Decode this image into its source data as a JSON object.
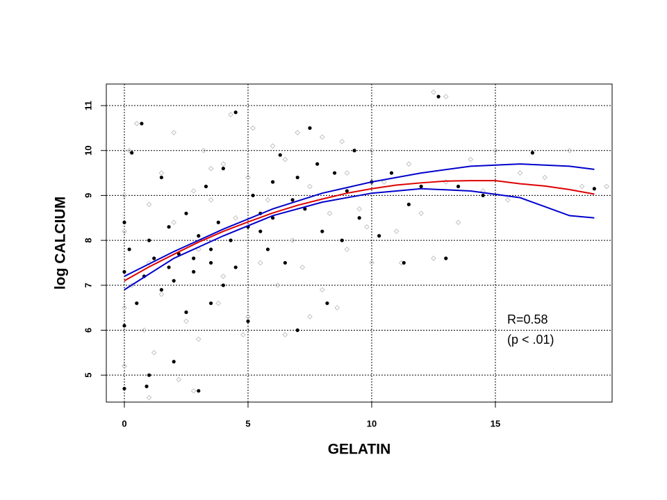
{
  "chart_data": {
    "type": "scatter",
    "xlabel": "GELATIN",
    "ylabel": "log CALCIUM",
    "annotations": [
      "R=0.58",
      "(p < .01)"
    ],
    "xlim": [
      -0.73,
      19.72
    ],
    "ylim": [
      4.4,
      11.48
    ],
    "xticks": [
      0,
      5,
      10,
      15
    ],
    "yticks": [
      5,
      6,
      7,
      8,
      9,
      10,
      11
    ],
    "grid": true,
    "series": [
      {
        "color": "#bbbbbb",
        "marker": "diamond",
        "x": [
          0,
          0,
          0,
          0,
          0.2,
          0.5,
          0.8,
          1,
          1,
          1.2,
          1.5,
          1.5,
          2,
          2,
          2.2,
          2.5,
          2.8,
          3,
          3,
          3.2,
          3.5,
          3.8,
          4,
          4,
          4.3,
          4.5,
          5,
          5,
          5.2,
          5.5,
          5.8,
          6,
          6.2,
          6.5,
          6.8,
          7,
          7.2,
          7.5,
          8,
          8,
          8.3,
          8.6,
          9,
          9,
          9.5,
          10,
          10,
          10.5,
          11,
          11.2,
          11.5,
          12,
          12.5,
          12.5,
          13,
          13,
          13.5,
          14,
          14.5,
          15,
          15.5,
          16,
          17,
          18,
          18.5,
          19.5,
          1,
          2.8,
          0.3,
          4.8,
          7.5,
          6.5,
          3.5,
          8.8,
          9.8
        ],
        "values": [
          9.0,
          8.2,
          6.5,
          5.2,
          10.0,
          10.6,
          6.0,
          8.8,
          7.5,
          5.5,
          9.5,
          6.8,
          8.4,
          10.4,
          4.9,
          6.2,
          9.1,
          7.8,
          5.8,
          10.0,
          8.9,
          6.6,
          9.7,
          7.2,
          10.8,
          8.5,
          6.3,
          9.4,
          10.5,
          7.5,
          8.9,
          10.1,
          7.0,
          9.8,
          8.0,
          10.4,
          7.4,
          9.2,
          6.9,
          10.3,
          8.6,
          6.5,
          9.5,
          7.8,
          8.7,
          10.0,
          7.5,
          9.3,
          8.2,
          7.5,
          9.7,
          8.6,
          7.6,
          11.3,
          9.3,
          11.2,
          8.4,
          9.8,
          9.1,
          10.0,
          8.9,
          9.5,
          9.4,
          10.0,
          9.2,
          9.2,
          4.5,
          4.65,
          7.0,
          5.9,
          6.3,
          5.9,
          9.6,
          10.2,
          8.3
        ]
      },
      {
        "color": "#000000",
        "marker": "circle",
        "x": [
          0,
          0,
          0,
          0,
          0.2,
          0.3,
          0.5,
          0.7,
          0.8,
          1,
          1,
          1.2,
          1.5,
          1.5,
          1.8,
          2,
          2,
          2.2,
          2.5,
          2.5,
          2.8,
          3,
          3,
          3.3,
          3.5,
          3.5,
          3.8,
          4,
          4,
          4.3,
          4.5,
          4.5,
          5,
          5,
          5.2,
          5.5,
          5.8,
          6,
          6,
          6.3,
          6.5,
          6.8,
          7,
          7,
          7.3,
          7.5,
          7.8,
          8,
          8.2,
          8.5,
          8.8,
          9,
          9.3,
          9.5,
          10,
          10.3,
          10.8,
          11.3,
          11.5,
          12,
          12.7,
          13,
          13.5,
          14.5,
          16.5,
          19,
          0.9,
          3.5,
          5.5,
          2.8,
          1.8
        ],
        "values": [
          8.4,
          7.3,
          6.1,
          4.7,
          7.8,
          9.95,
          6.6,
          10.6,
          7.2,
          8.0,
          5.0,
          7.6,
          6.9,
          9.4,
          8.3,
          7.1,
          5.3,
          7.7,
          8.6,
          6.4,
          7.3,
          8.1,
          4.65,
          9.2,
          7.5,
          6.6,
          8.4,
          7.0,
          9.6,
          8.0,
          10.85,
          7.4,
          8.3,
          6.2,
          9.0,
          8.6,
          7.8,
          9.3,
          8.5,
          9.9,
          7.5,
          8.9,
          9.4,
          6.0,
          8.7,
          10.5,
          9.7,
          8.2,
          6.6,
          9.5,
          8.0,
          9.1,
          10.0,
          8.5,
          9.3,
          8.1,
          9.5,
          7.5,
          8.8,
          9.2,
          11.2,
          7.6,
          9.2,
          9.0,
          9.95,
          9.15,
          4.75,
          7.8,
          8.2,
          7.6,
          7.4
        ]
      }
    ],
    "lines": [
      {
        "color": "#0000cc",
        "x": [
          0,
          2,
          4,
          6,
          8,
          10,
          12,
          14,
          16,
          18,
          19
        ],
        "values": [
          7.2,
          7.75,
          8.25,
          8.7,
          9.05,
          9.3,
          9.5,
          9.65,
          9.7,
          9.65,
          9.58
        ]
      },
      {
        "color": "#0000cc",
        "x": [
          0,
          2,
          4,
          6,
          8,
          10,
          12,
          14,
          16,
          17,
          18,
          19
        ],
        "values": [
          6.9,
          7.6,
          8.1,
          8.55,
          8.85,
          9.05,
          9.15,
          9.1,
          8.95,
          8.75,
          8.55,
          8.5
        ]
      },
      {
        "color": "#dd0000",
        "x": [
          0,
          1,
          2,
          3,
          4,
          5,
          6,
          7,
          8,
          9,
          10,
          11,
          12,
          13,
          14,
          15,
          16,
          17,
          18,
          19
        ],
        "values": [
          7.1,
          7.41,
          7.69,
          7.96,
          8.2,
          8.41,
          8.61,
          8.78,
          8.92,
          9.05,
          9.15,
          9.23,
          9.28,
          9.32,
          9.33,
          9.33,
          9.26,
          9.21,
          9.13,
          9.03
        ]
      }
    ]
  }
}
